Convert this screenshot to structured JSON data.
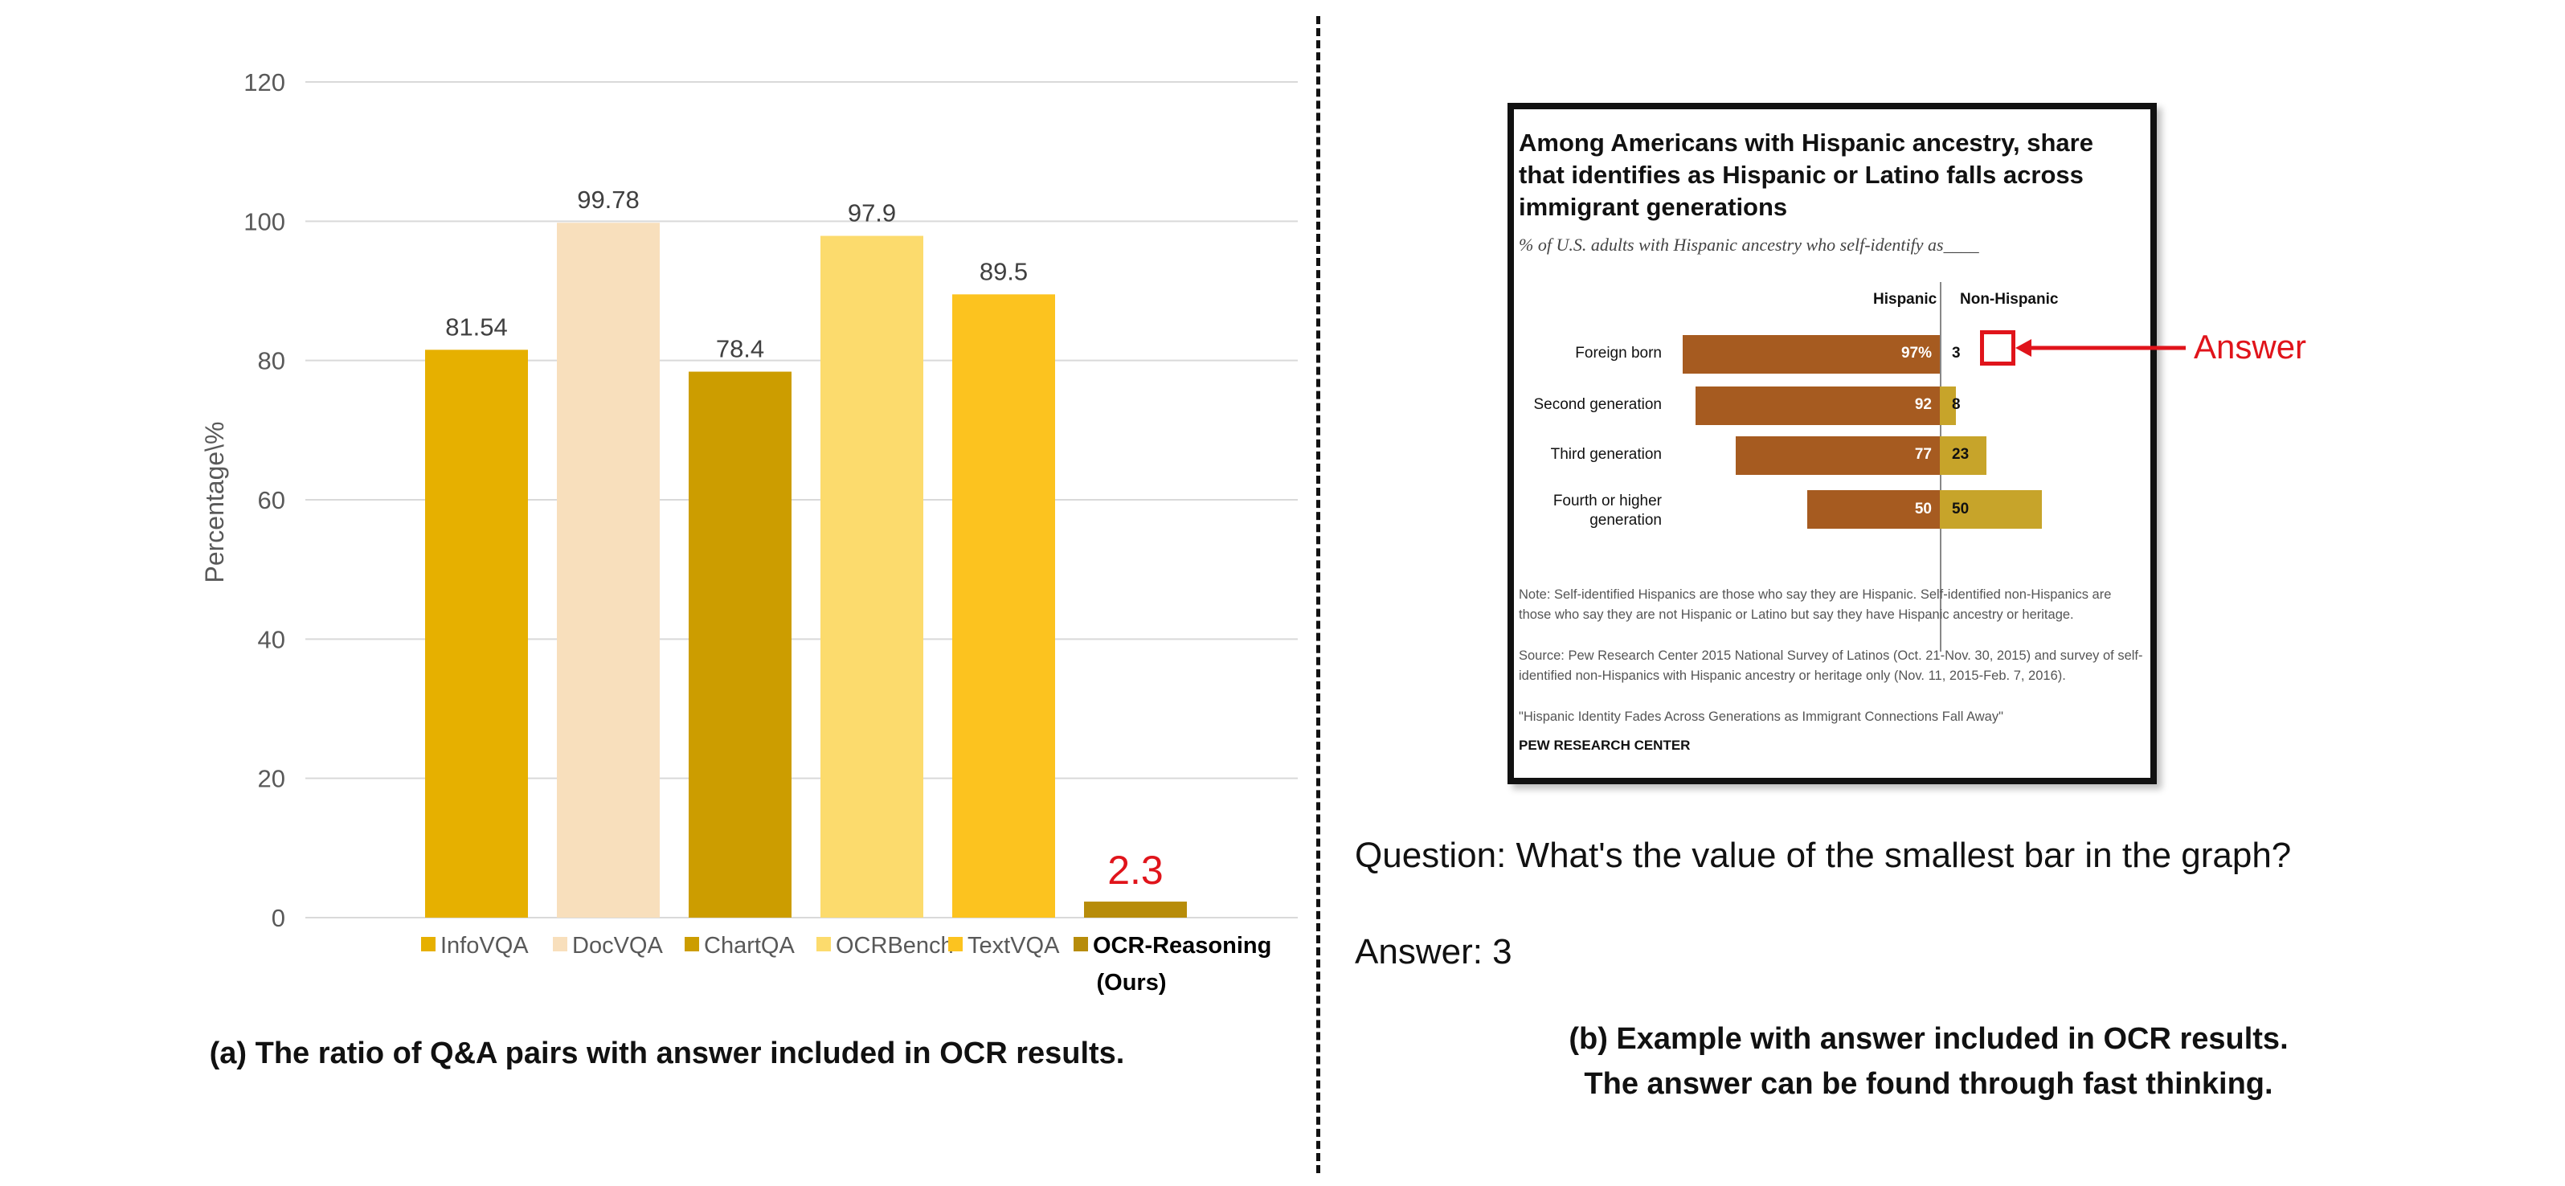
{
  "chart_data": {
    "type": "bar",
    "ylabel": "Percentage\\%",
    "ylim": [
      0,
      120
    ],
    "yticks": [
      0,
      20,
      40,
      60,
      80,
      100,
      120
    ],
    "grid": true,
    "legend_position": "bottom",
    "categories": [
      "InfoVQA",
      "DocVQA",
      "ChartQA",
      "OCRBench",
      "TextVQA",
      "OCR-Reasoning"
    ],
    "legend_labels": [
      "InfoVQA",
      "DocVQA",
      "ChartQA",
      "OCRBench",
      "TextVQA",
      "OCR-Reasoning",
      "(Ours)"
    ],
    "values": [
      81.54,
      99.78,
      78.4,
      97.9,
      89.5,
      2.3
    ],
    "value_labels": [
      "81.54",
      "99.78",
      "78.4",
      "97.9",
      "89.5",
      "2.3"
    ],
    "colors": [
      "#e6b000",
      "#f8dfbc",
      "#cc9d00",
      "#fcdb6d",
      "#fcc31f",
      "#b78c0a"
    ],
    "highlight_color": "#e0141b"
  },
  "captions": {
    "a": "(a) The ratio of Q&A pairs  with answer included in OCR results.",
    "b_line1": "(b) Example with answer included in OCR results.",
    "b_line2": "The answer can be found through fast thinking."
  },
  "example": {
    "title": "Among Americans with Hispanic ancestry, share that identifies as Hispanic or Latino falls across immigrant generations",
    "subtitle": "% of U.S. adults with Hispanic ancestry who self-identify as____",
    "col_hispanic": "Hispanic",
    "col_non_hispanic": "Non-Hispanic",
    "rows": [
      {
        "label": "Foreign born",
        "hispanic": 97,
        "hispanic_label": "97%",
        "non_hispanic": 3,
        "non_hispanic_label": "3"
      },
      {
        "label": "Second generation",
        "hispanic": 92,
        "hispanic_label": "92",
        "non_hispanic": 8,
        "non_hispanic_label": "8"
      },
      {
        "label": "Third generation",
        "hispanic": 77,
        "hispanic_label": "77",
        "non_hispanic": 23,
        "non_hispanic_label": "23"
      },
      {
        "label_line1": "Fourth or higher",
        "label_line2": "generation",
        "hispanic": 50,
        "hispanic_label": "50",
        "non_hispanic": 50,
        "non_hispanic_label": "50"
      }
    ],
    "note1": "Note: Self-identified Hispanics are those who say they are Hispanic. Self-identified non-Hispanics are those who say they are not Hispanic or Latino but say they have Hispanic ancestry or heritage.",
    "note2": "Source: Pew Research Center 2015 National Survey of Latinos (Oct. 21-Nov. 30, 2015) and survey of self-identified non-Hispanics with Hispanic ancestry or heritage only (Nov. 11, 2015-Feb. 7, 2016).",
    "note3": "\"Hispanic Identity Fades Across Generations as Immigrant Connections Fall Away\"",
    "org": "PEW RESEARCH CENTER",
    "answer_callout": "Answer",
    "colors": {
      "hispanic": "#a65b20",
      "non_hispanic": "#c7a42a",
      "callout": "#e0141b"
    }
  },
  "qa": {
    "question": "Question: What's the value of the smallest bar in the graph?",
    "answer": "Answer: 3"
  }
}
